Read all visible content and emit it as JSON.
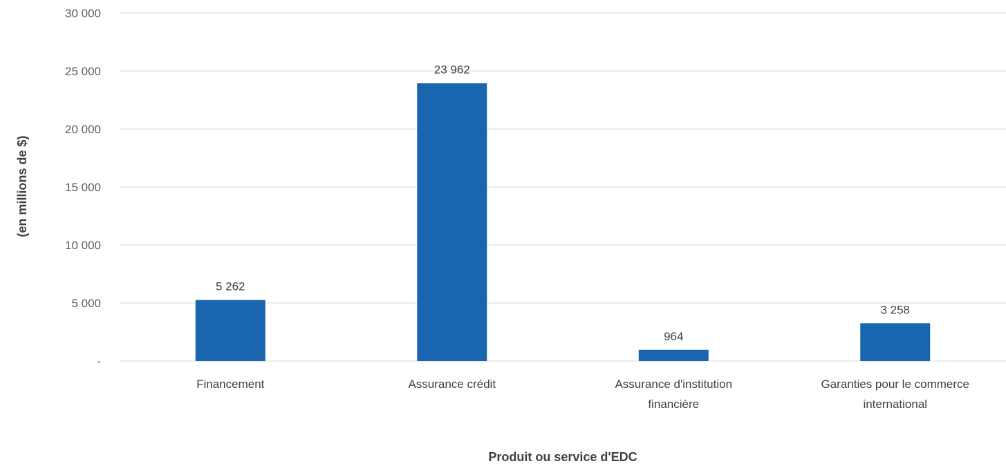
{
  "chart_data": {
    "type": "bar",
    "categories": [
      [
        "Financement"
      ],
      [
        "Assurance crédit"
      ],
      [
        "Assurance d'institution",
        "financière"
      ],
      [
        "Garanties pour le commerce",
        "international"
      ]
    ],
    "values": [
      5262,
      23962,
      964,
      3258
    ],
    "value_labels": [
      "5 262",
      "23 962",
      "964",
      "3 258"
    ],
    "title": "",
    "xlabel": "Produit ou service d'EDC",
    "ylabel": "(en millions de $)",
    "ylim": [
      0,
      30000
    ],
    "yticks": [
      0,
      5000,
      10000,
      15000,
      20000,
      25000,
      30000
    ],
    "ytick_labels": [
      "-",
      "5 000",
      "10 000",
      "15 000",
      "20 000",
      "25 000",
      "30 000"
    ],
    "grid": true,
    "legend": "none",
    "bar_color": "#1a65b0"
  }
}
